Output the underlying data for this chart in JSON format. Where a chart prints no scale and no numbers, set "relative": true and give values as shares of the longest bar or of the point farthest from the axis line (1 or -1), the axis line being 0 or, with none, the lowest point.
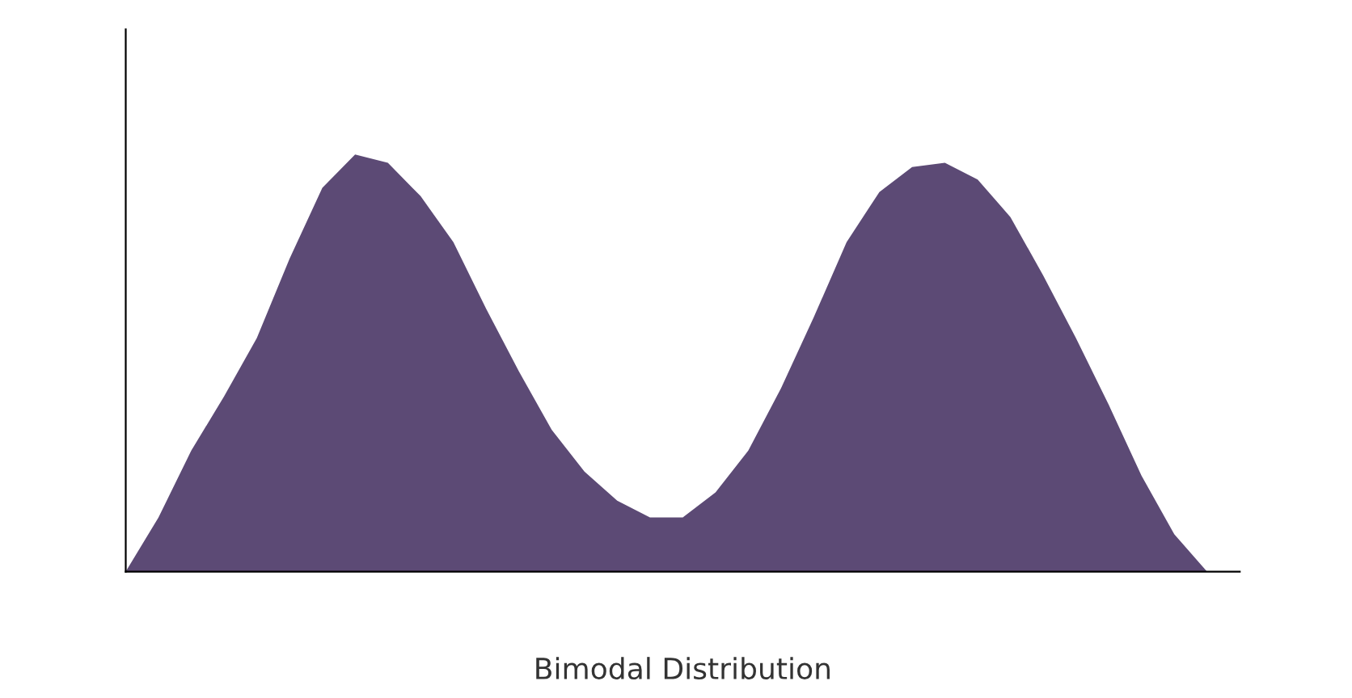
{
  "chart_data": {
    "type": "area",
    "relative": true,
    "xlabel": "Bimodal Distribution",
    "tick_labels": false,
    "grid": false,
    "legend": false,
    "categories": [
      null,
      null,
      null,
      null,
      null,
      null,
      null,
      null,
      null,
      null,
      null,
      null,
      null,
      null,
      null,
      null,
      null,
      null,
      null,
      null,
      null,
      null,
      null,
      null,
      null,
      null,
      null,
      null,
      null,
      null,
      null,
      null,
      null,
      null,
      null
    ],
    "series": [
      {
        "color": "#5c4a75",
        "values": [
          0,
          0.13,
          0.29,
          0.42,
          0.56,
          0.75,
          0.92,
          1,
          0.98,
          0.9,
          0.79,
          0.63,
          0.48,
          0.34,
          0.24,
          0.17,
          0.13,
          0.13,
          0.19,
          0.29,
          0.44,
          0.61,
          0.79,
          0.91,
          0.97,
          0.98,
          0.94,
          0.85,
          0.71,
          0.56,
          0.4,
          0.23,
          0.09,
          0,
          null
        ]
      }
    ]
  }
}
